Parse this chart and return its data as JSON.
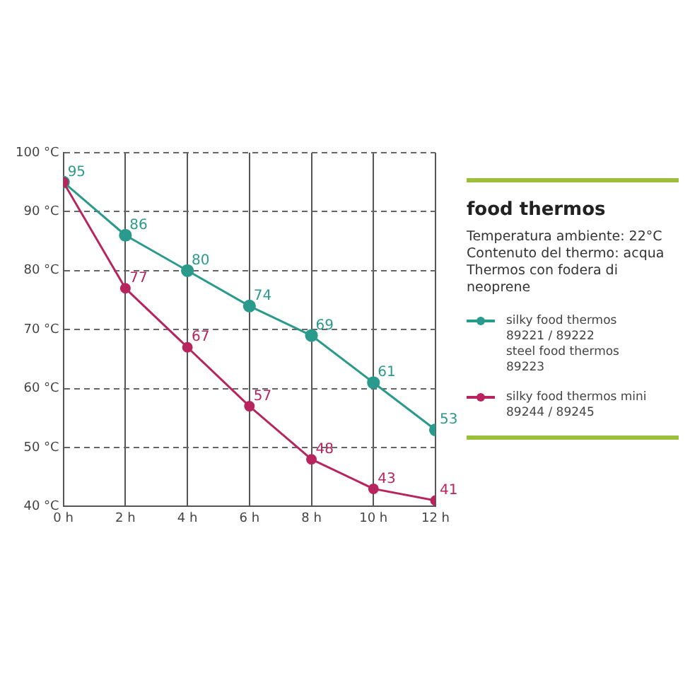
{
  "chart_data": {
    "type": "line",
    "title": "food thermos",
    "subtitle": "Temperatura ambiente: 22°C\nContenuto del thermo: acqua\nThermos con fodera di neoprene",
    "x": [
      0,
      2,
      4,
      6,
      8,
      10,
      12
    ],
    "series": [
      {
        "name": "silky food thermos\n89221 / 89222\nsteel food thermos\n89223",
        "color": "#2a9a8c",
        "values": [
          95,
          86,
          80,
          74,
          69,
          61,
          53
        ],
        "value_labels": [
          "95",
          "86",
          "80",
          "74",
          "69",
          "61",
          "53"
        ]
      },
      {
        "name": "silky food thermos mini\n89244 / 89245",
        "color": "#b8245e",
        "values": [
          95,
          77,
          67,
          57,
          48,
          43,
          41
        ],
        "value_labels": [
          null,
          "77",
          "67",
          "57",
          "48",
          "43",
          "41"
        ]
      }
    ],
    "xlim": [
      0,
      12
    ],
    "xticks": [
      {
        "value": 0,
        "label": "0 h"
      },
      {
        "value": 2,
        "label": "2 h"
      },
      {
        "value": 4,
        "label": "4 h"
      },
      {
        "value": 6,
        "label": "6 h"
      },
      {
        "value": 8,
        "label": "8 h"
      },
      {
        "value": 10,
        "label": "10 h"
      },
      {
        "value": 12,
        "label": "12 h"
      }
    ],
    "ylim": [
      40,
      100
    ],
    "yticks": [
      {
        "value": 40,
        "label": "40 °C"
      },
      {
        "value": 50,
        "label": "50 °C"
      },
      {
        "value": 60,
        "label": "60 °C"
      },
      {
        "value": 70,
        "label": "70 °C"
      },
      {
        "value": 80,
        "label": "80 °C"
      },
      {
        "value": 90,
        "label": "90 °C"
      },
      {
        "value": 100,
        "label": "100 °C"
      }
    ],
    "grid": true,
    "legend": "right",
    "marker": "circle",
    "line_style": "solid"
  }
}
